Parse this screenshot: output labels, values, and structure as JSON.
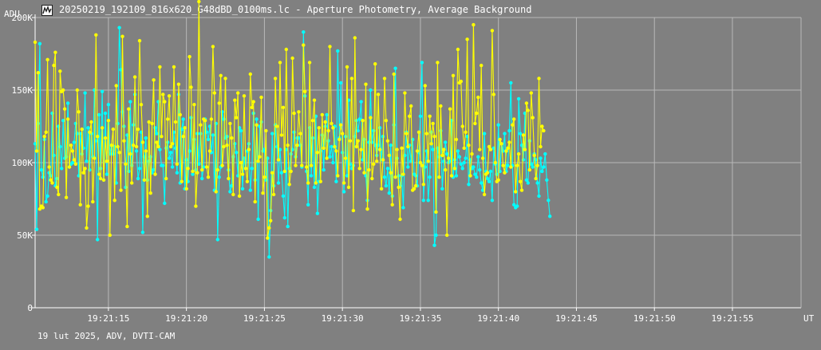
{
  "title": "20250219_192109_816x620_G48dBD_0100ms.lc - Aperture Photometry, Average Background",
  "title_icon": "lightcurve-app-icon",
  "footer": "19 lut 2025, ADV, DVTI-CAM",
  "colors": {
    "background": "#808080",
    "grid": "#b8b8b8",
    "axis": "#ffffff",
    "series_yellow": "#ffff00",
    "series_cyan": "#00ffff"
  },
  "chart_data": {
    "type": "line",
    "title": "20250219_192109_816x620_G48dBD_0100ms.lc - Aperture Photometry, Average Background",
    "xlabel": "UT",
    "ylabel": "ADU",
    "grid": true,
    "xlim_seconds": [
      10.3,
      59.4
    ],
    "ylim": [
      0,
      200000
    ],
    "y_ticks": [
      0,
      50000,
      100000,
      150000,
      200000
    ],
    "y_tick_labels": [
      "0",
      "50K",
      "100K",
      "150K",
      "200K"
    ],
    "x_ticks": [
      "19:21:15",
      "19:21:20",
      "19:21:25",
      "19:21:30",
      "19:21:35",
      "19:21:40",
      "19:21:45",
      "19:21:50",
      "19:21:55"
    ],
    "x_tick_seconds": [
      15,
      20,
      25,
      30,
      35,
      40,
      45,
      50,
      55
    ],
    "series": [
      {
        "color": "#ffff00",
        "x_start_seconds": 10.3,
        "x_step_seconds": 0.1,
        "values": [
          183000,
          108000,
          162000,
          68000,
          70000,
          69000,
          118000,
          121000,
          171000,
          97000,
          88000,
          86000,
          167000,
          176000,
          83000,
          78000,
          163000,
          149000,
          150000,
          137000,
          76000,
          130000,
          97000,
          112000,
          108000,
          102000,
          99000,
          150000,
          135000,
          71000,
          123000,
          93000,
          96000,
          55000,
          70000,
          121000,
          128000,
          73000,
          103000,
          188000,
          118000,
          92000,
          89000,
          124000,
          88000,
          117000,
          101000,
          129000,
          50000,
          112000,
          123000,
          74000,
          153000,
          111000,
          107000,
          81000,
          187000,
          115000,
          99000,
          56000,
          137000,
          106000,
          86000,
          112000,
          159000,
          111000,
          123000,
          184000,
          140000,
          114000,
          88000,
          108000,
          63000,
          128000,
          79000,
          127000,
          157000,
          92000,
          114000,
          111000,
          166000,
          118000,
          147000,
          142000,
          89000,
          130000,
          146000,
          111000,
          113000,
          166000,
          128000,
          99000,
          154000,
          133000,
          87000,
          118000,
          124000,
          82000,
          96000,
          173000,
          152000,
          94000,
          140000,
          70000,
          93000,
          211000,
          126000,
          95000,
          130000,
          129000,
          97000,
          90000,
          108000,
          130000,
          180000,
          148000,
          80000,
          95000,
          141000,
          160000,
          98000,
          111000,
          158000,
          112000,
          89000,
          127000,
          117000,
          78000,
          143000,
          131000,
          148000,
          77000,
          100000,
          92000,
          146000,
          96000,
          87000,
          109000,
          161000,
          138000,
          142000,
          73000,
          126000,
          101000,
          104000,
          145000,
          79000,
          90000,
          122000,
          48000,
          55000,
          60000,
          93000,
          78000,
          158000,
          125000,
          102000,
          169000,
          119000,
          138000,
          94000,
          178000,
          112000,
          85000,
          94000,
          172000,
          134000,
          98000,
          112000,
          135000,
          120000,
          98000,
          181000,
          149000,
          97000,
          86000,
          169000,
          98000,
          129000,
          143000,
          86000,
          107000,
          124000,
          87000,
          133000,
          110000,
          128000,
          103000,
          122000,
          180000,
          127000,
          124000,
          111000,
          108000,
          91000,
          116000,
          126000,
          120000,
          86000,
          103000,
          166000,
          83000,
          115000,
          158000,
          67000,
          186000,
          111000,
          115000,
          96000,
          109000,
          129000,
          93000,
          154000,
          68000,
          95000,
          131000,
          89000,
          99000,
          168000,
          101000,
          147000,
          109000,
          82000,
          102000,
          158000,
          129000,
          115000,
          105000,
          93000,
          71000,
          161000,
          90000,
          109000,
          83000,
          61000,
          110000,
          92000,
          148000,
          120000,
          111000,
          132000,
          139000,
          81000,
          82000,
          84000,
          108000,
          121000,
          100000,
          98000,
          85000,
          153000,
          120000,
          101000,
          132000,
          113000,
          127000,
          118000,
          66000,
          169000,
          90000,
          139000,
          105000,
          109000,
          95000,
          50000,
          103000,
          137000,
          91000,
          160000,
          96000,
          116000,
          178000,
          155000,
          156000,
          125000,
          110000,
          121000,
          185000,
          112000,
          91000,
          106000,
          195000,
          127000,
          134000,
          145000,
          109000,
          167000,
          103000,
          78000,
          92000,
          93000,
          111000,
          109000,
          191000,
          147000,
          100000,
          87000,
          88000,
          116000,
          113000,
          98000,
          93000,
          108000,
          110000,
          114000,
          97000,
          126000,
          130000,
          80000,
          98000,
          106000,
          87000,
          81000,
          119000,
          109000,
          141000,
          136000,
          95000,
          148000,
          131000,
          105000,
          89000,
          98000,
          158000,
          111000,
          125000,
          122000
        ]
      },
      {
        "color": "#00ffff",
        "x_start_seconds": 10.3,
        "x_step_seconds": 0.1,
        "values": [
          113000,
          54000,
          127000,
          182000,
          95000,
          90000,
          116000,
          73000,
          77000,
          93000,
          91000,
          134000,
          105000,
          84000,
          89000,
          125000,
          111000,
          96000,
          129000,
          103000,
          104000,
          141000,
          97000,
          99000,
          100000,
          114000,
          127000,
          120000,
          91000,
          120000,
          106000,
          110000,
          148000,
          101000,
          124000,
          95000,
          120000,
          104000,
          150000,
          115000,
          47000,
          133000,
          96000,
          149000,
          88000,
          134000,
          92000,
          140000,
          106000,
          112000,
          106000,
          111000,
          86000,
          127000,
          193000,
          164000,
          135000,
          125000,
          83000,
          119000,
          94000,
          142000,
          98000,
          126000,
          147000,
          108000,
          89000,
          96000,
          121000,
          52000,
          104000,
          117000,
          88000,
          101000,
          104000,
          93000,
          95000,
          124000,
          120000,
          142000,
          109000,
          98000,
          98000,
          72000,
          110000,
          114000,
          103000,
          107000,
          97000,
          121000,
          110000,
          93000,
          147000,
          86000,
          123000,
          130000,
          82000,
          102000,
          87000,
          108000,
          131000,
          92000,
          116000,
          95000,
          120000,
          99000,
          120000,
          89000,
          97000,
          130000,
          121000,
          116000,
          125000,
          107000,
          119000,
          81000,
          127000,
          47000,
          90000,
          97000,
          135000,
          130000,
          117000,
          118000,
          95000,
          80000,
          84000,
          104000,
          113000,
          107000,
          91000,
          124000,
          122000,
          82000,
          103000,
          96000,
          108000,
          113000,
          81000,
          96000,
          134000,
          88000,
          130000,
          61000,
          125000,
          128000,
          108000,
          109000,
          88000,
          103000,
          35000,
          67000,
          120000,
          84000,
          126000,
          111000,
          86000,
          109000,
          93000,
          77000,
          62000,
          109000,
          56000,
          96000,
          106000,
          109000,
          121000,
          104000,
          117000,
          117000,
          112000,
          97000,
          190000,
          146000,
          94000,
          71000,
          124000,
          91000,
          117000,
          83000,
          132000,
          65000,
          87000,
          108000,
          119000,
          95000,
          125000,
          133000,
          115000,
          104000,
          111000,
          100000,
          125000,
          87000,
          177000,
          117000,
          155000,
          107000,
          80000,
          118000,
          91000,
          143000,
          99000,
          96000,
          98000,
          118000,
          129000,
          122000,
          130000,
          142000,
          102000,
          116000,
          91000,
          74000,
          114000,
          150000,
          114000,
          122000,
          112000,
          105000,
          112000,
          124000,
          102000,
          118000,
          90000,
          84000,
          96000,
          79000,
          112000,
          77000,
          126000,
          165000,
          103000,
          91000,
          84000,
          91000,
          69000,
          105000,
          121000,
          97000,
          112000,
          101000,
          116000,
          92000,
          91000,
          84000,
          107000,
          132000,
          169000,
          74000,
          97000,
          108000,
          74000,
          90000,
          121000,
          109000,
          43000,
          50000,
          110000,
          104000,
          122000,
          82000,
          101000,
          114000,
          106000,
          100000,
          101000,
          129000,
          90000,
          102000,
          91000,
          108000,
          104000,
          99000,
          96000,
          100000,
          103000,
          118000,
          85000,
          102000,
          96000,
          97000,
          92000,
          90000,
          104000,
          95000,
          86000,
          81000,
          120000,
          94000,
          89000,
          87000,
          94000,
          74000,
          110000,
          99000,
          92000,
          126000,
          94000,
          113000,
          108000,
          120000,
          94000,
          98000,
          122000,
          155000,
          98000,
          71000,
          69000,
          70000,
          144000,
          120000,
          112000,
          102000,
          134000,
          88000,
          86000,
          115000,
          99000,
          97000,
          106000,
          102000,
          86000,
          77000,
          103000,
          94000,
          97000,
          106000,
          88000,
          74000,
          63000
        ]
      }
    ]
  }
}
